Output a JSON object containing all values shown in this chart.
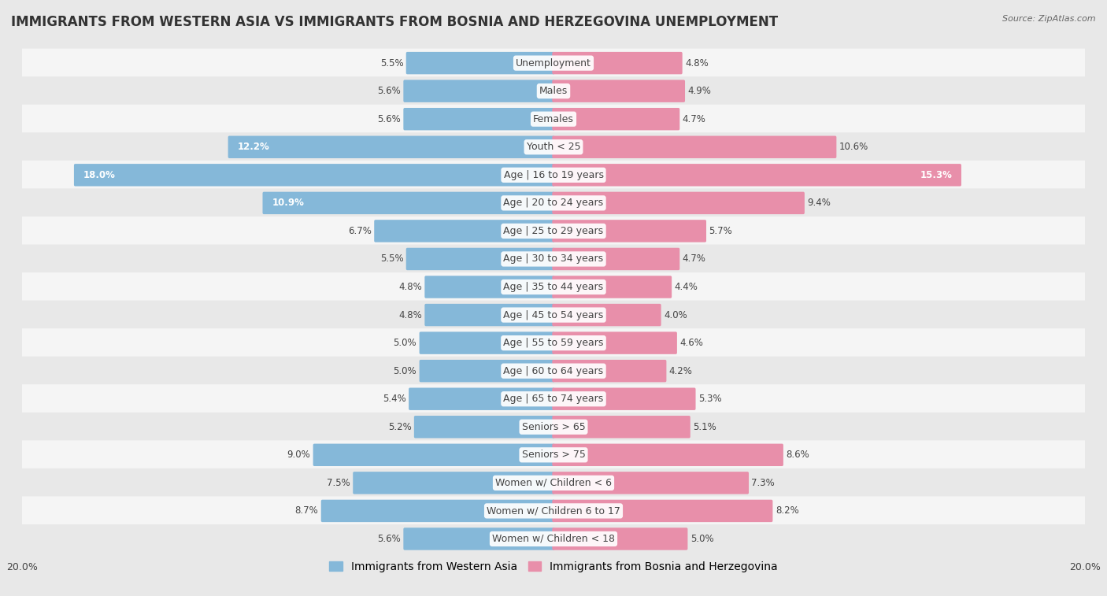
{
  "title": "IMMIGRANTS FROM WESTERN ASIA VS IMMIGRANTS FROM BOSNIA AND HERZEGOVINA UNEMPLOYMENT",
  "source": "Source: ZipAtlas.com",
  "categories": [
    "Unemployment",
    "Males",
    "Females",
    "Youth < 25",
    "Age | 16 to 19 years",
    "Age | 20 to 24 years",
    "Age | 25 to 29 years",
    "Age | 30 to 34 years",
    "Age | 35 to 44 years",
    "Age | 45 to 54 years",
    "Age | 55 to 59 years",
    "Age | 60 to 64 years",
    "Age | 65 to 74 years",
    "Seniors > 65",
    "Seniors > 75",
    "Women w/ Children < 6",
    "Women w/ Children 6 to 17",
    "Women w/ Children < 18"
  ],
  "left_values": [
    5.5,
    5.6,
    5.6,
    12.2,
    18.0,
    10.9,
    6.7,
    5.5,
    4.8,
    4.8,
    5.0,
    5.0,
    5.4,
    5.2,
    9.0,
    7.5,
    8.7,
    5.6
  ],
  "right_values": [
    4.8,
    4.9,
    4.7,
    10.6,
    15.3,
    9.4,
    5.7,
    4.7,
    4.4,
    4.0,
    4.6,
    4.2,
    5.3,
    5.1,
    8.6,
    7.3,
    8.2,
    5.0
  ],
  "left_color": "#85b8d9",
  "right_color": "#e88faa",
  "left_label": "Immigrants from Western Asia",
  "right_label": "Immigrants from Bosnia and Herzegovina",
  "axis_max": 20.0,
  "bg_color": "#e8e8e8",
  "row_color_even": "#f5f5f5",
  "row_color_odd": "#e8e8e8",
  "title_fontsize": 12,
  "label_fontsize": 9,
  "value_fontsize": 8.5,
  "legend_fontsize": 10,
  "bar_height": 0.7
}
